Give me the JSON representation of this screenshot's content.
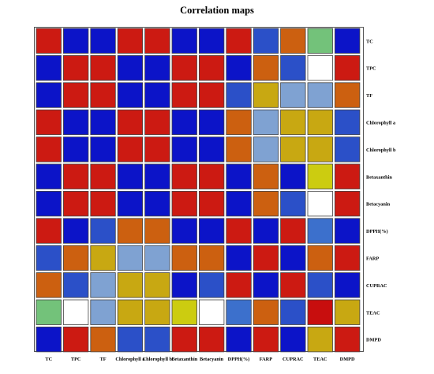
{
  "chart_data": {
    "type": "heatmap",
    "title": "Correlation maps",
    "xlabel": "",
    "ylabel": "",
    "grid": true,
    "x_categories": [
      "TC",
      "TPC",
      "TF",
      "Chlorophyll a",
      "Chlorophyll b",
      "Betaxanthin",
      "Betacyanin",
      "DPPH(%)",
      "FARP",
      "CUPRAC",
      "TEAC",
      "DMPD"
    ],
    "y_categories": [
      "TC",
      "TPC",
      "TF",
      "Chlorophyll a",
      "Chlorophyll b",
      "Betaxanthin",
      "Betacyanin",
      "DPPH(%)",
      "FARP",
      "CUPRAC",
      "TEAC",
      "DMPD"
    ],
    "color_levels": [
      "#0c14c8",
      "#2b50c8",
      "#3c70cc",
      "#7fa2d2",
      "#ffffff",
      "#73c27a",
      "#cccc10",
      "#c8a812",
      "#cc6010",
      "#cc1a12",
      "#c80e0e"
    ],
    "values": [
      [
        9,
        0,
        0,
        9,
        9,
        0,
        0,
        9,
        1,
        8,
        5,
        0
      ],
      [
        0,
        9,
        9,
        0,
        0,
        9,
        9,
        0,
        8,
        1,
        4,
        9
      ],
      [
        0,
        9,
        9,
        0,
        0,
        9,
        9,
        1,
        7,
        3,
        3,
        8
      ],
      [
        9,
        0,
        0,
        9,
        9,
        0,
        0,
        8,
        3,
        7,
        7,
        1
      ],
      [
        9,
        0,
        0,
        9,
        9,
        0,
        0,
        8,
        3,
        7,
        7,
        1
      ],
      [
        0,
        9,
        9,
        0,
        0,
        9,
        9,
        0,
        8,
        0,
        6,
        9
      ],
      [
        0,
        9,
        9,
        0,
        0,
        9,
        9,
        0,
        8,
        1,
        4,
        9
      ],
      [
        9,
        0,
        1,
        8,
        8,
        0,
        0,
        9,
        0,
        9,
        2,
        0
      ],
      [
        1,
        8,
        7,
        3,
        3,
        8,
        8,
        0,
        9,
        0,
        8,
        9
      ],
      [
        8,
        1,
        3,
        7,
        7,
        0,
        1,
        9,
        0,
        9,
        1,
        0
      ],
      [
        5,
        4,
        3,
        7,
        7,
        6,
        4,
        2,
        8,
        1,
        10,
        7
      ],
      [
        0,
        9,
        8,
        1,
        1,
        9,
        9,
        0,
        9,
        0,
        7,
        9
      ]
    ]
  }
}
